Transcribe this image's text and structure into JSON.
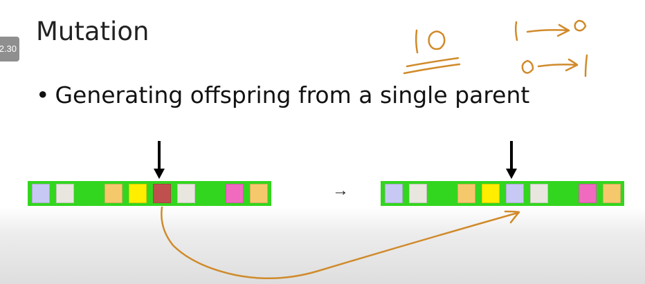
{
  "video": {
    "timestamp_label": "2.30"
  },
  "slide": {
    "title": "Mutation",
    "bullet": "Generating offspring from a single parent",
    "bullet_marker": "•",
    "transform_arrow": "→"
  },
  "parent_chromosome": {
    "background_color": "#33d61e",
    "genes": [
      {
        "color": "#c8c8f4"
      },
      {
        "color": "#e8e6df"
      },
      {
        "color": "#33d61e"
      },
      {
        "color": "#f6c86c"
      },
      {
        "color": "#ffee00"
      },
      {
        "color": "#c0504d",
        "mutated": true
      },
      {
        "color": "#e8e6df"
      },
      {
        "color": "#33d61e"
      },
      {
        "color": "#f06ac0"
      },
      {
        "color": "#f6c86c"
      }
    ]
  },
  "offspring_chromosome": {
    "background_color": "#33d61e",
    "genes": [
      {
        "color": "#c8c8f4"
      },
      {
        "color": "#e8e6df"
      },
      {
        "color": "#33d61e"
      },
      {
        "color": "#f6c86c"
      },
      {
        "color": "#ffee00"
      },
      {
        "color": "#c8c8f4",
        "mutated": true
      },
      {
        "color": "#e8e6df"
      },
      {
        "color": "#33d61e"
      },
      {
        "color": "#f06ac0"
      },
      {
        "color": "#f6c86c"
      }
    ]
  },
  "annotations": {
    "ink_color": "#d08a2a",
    "handwritten": [
      "10",
      "1→0",
      "0→1"
    ]
  }
}
